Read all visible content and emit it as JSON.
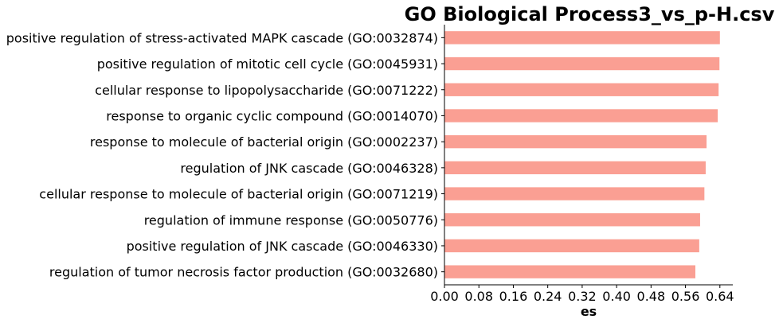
{
  "chart_data": {
    "type": "bar",
    "orientation": "horizontal",
    "title": "GO Biological Process3_vs_p-H.csv",
    "xlabel": "es",
    "ylabel": "",
    "xlim": [
      0,
      0.67
    ],
    "xticks": [
      "0.00",
      "0.08",
      "0.16",
      "0.24",
      "0.32",
      "0.40",
      "0.48",
      "0.56",
      "0.64"
    ],
    "xtick_values": [
      0,
      0.08,
      0.16,
      0.24,
      0.32,
      0.4,
      0.48,
      0.56,
      0.64
    ],
    "grid": false,
    "bar_color": "#fa9f93",
    "categories": [
      "positive regulation of stress-activated MAPK cascade (GO:0032874)",
      "positive regulation of mitotic cell cycle (GO:0045931)",
      "cellular response to lipopolysaccharide (GO:0071222)",
      "response to organic cyclic compound (GO:0014070)",
      "response to molecule of bacterial origin (GO:0002237)",
      "regulation of JNK cascade (GO:0046328)",
      "cellular response to molecule of bacterial origin (GO:0071219)",
      "regulation of immune response (GO:0050776)",
      "positive regulation of JNK cascade (GO:0046330)",
      "regulation of tumor necrosis factor production (GO:0032680)"
    ],
    "values": [
      0.64,
      0.639,
      0.637,
      0.635,
      0.609,
      0.607,
      0.604,
      0.594,
      0.592,
      0.583
    ]
  }
}
